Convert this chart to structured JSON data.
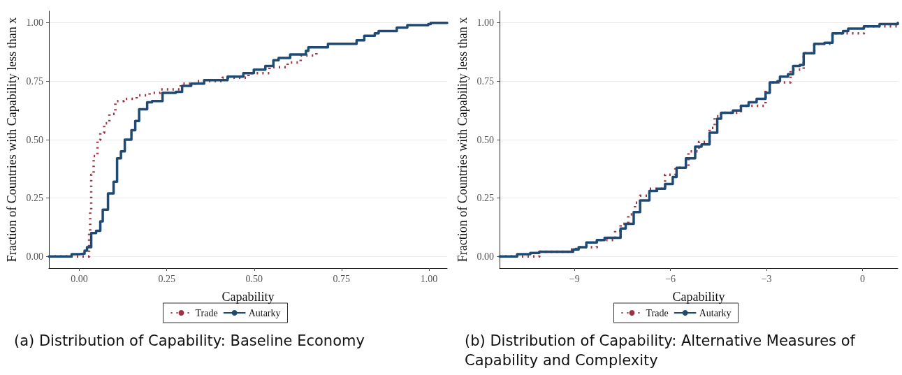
{
  "chart_data": [
    {
      "type": "step",
      "title": "(a) Distribution of Capability: Baseline Economy",
      "xlabel": "Capability",
      "ylabel": "Fraction of Countries with Capability less than x",
      "xlim": [
        -0.087,
        1.052
      ],
      "ylim": [
        -0.05,
        1.05
      ],
      "xticks": [
        {
          "value": 0,
          "label": "0.00"
        },
        {
          "value": 0.25,
          "label": "0.25"
        },
        {
          "value": 0.5,
          "label": "0.50"
        },
        {
          "value": 0.75,
          "label": "0.75"
        },
        {
          "value": 1,
          "label": "1.00"
        }
      ],
      "yticks": [
        {
          "value": 0,
          "label": "0.00"
        },
        {
          "value": 0.25,
          "label": "0.25"
        },
        {
          "value": 0.5,
          "label": "0.50"
        },
        {
          "value": 0.75,
          "label": "0.75"
        },
        {
          "value": 1,
          "label": "1.00"
        }
      ],
      "grid": "y",
      "legend": "bottom",
      "series": [
        {
          "name": "Trade",
          "color": "#9b3340",
          "line_style": "dotted",
          "x": [
            -0.087,
            0.026,
            0.028,
            0.031,
            0.034,
            0.041,
            0.052,
            0.06,
            0.071,
            0.086,
            0.103,
            0.127,
            0.164,
            0.201,
            0.231,
            0.29,
            0.335,
            0.41,
            0.484,
            0.544,
            0.596,
            0.633,
            0.678
          ],
          "values": [
            0,
            0,
            0.1,
            0.2,
            0.35,
            0.43,
            0.5,
            0.53,
            0.57,
            0.61,
            0.665,
            0.675,
            0.69,
            0.7,
            0.715,
            0.74,
            0.75,
            0.765,
            0.785,
            0.81,
            0.83,
            0.86,
            0.875
          ]
        },
        {
          "name": "Autarky",
          "color": "#1f4a73",
          "line_style": "solid",
          "x": [
            -0.087,
            -0.022,
            0.0,
            0.015,
            0.022,
            0.034,
            0.048,
            0.06,
            0.067,
            0.082,
            0.098,
            0.108,
            0.119,
            0.13,
            0.149,
            0.16,
            0.171,
            0.194,
            0.208,
            0.238,
            0.276,
            0.294,
            0.32,
            0.357,
            0.424,
            0.469,
            0.499,
            0.532,
            0.555,
            0.57,
            0.603,
            0.648,
            0.655,
            0.711,
            0.793,
            0.815,
            0.845,
            0.856,
            0.908,
            0.938,
            0.998,
            1.005,
            1.052
          ],
          "values": [
            0,
            0.01,
            0.012,
            0.025,
            0.04,
            0.1,
            0.11,
            0.15,
            0.2,
            0.27,
            0.32,
            0.42,
            0.45,
            0.5,
            0.54,
            0.58,
            0.63,
            0.66,
            0.665,
            0.7,
            0.705,
            0.73,
            0.74,
            0.755,
            0.77,
            0.785,
            0.8,
            0.815,
            0.84,
            0.85,
            0.865,
            0.88,
            0.895,
            0.91,
            0.925,
            0.945,
            0.955,
            0.965,
            0.98,
            0.99,
            0.995,
            1.0,
            1.0
          ]
        }
      ]
    },
    {
      "type": "step",
      "title": "(b) Distribution of Capability: Alternative Measures of Capability and Complexity",
      "xlabel": "Capability",
      "ylabel": "Fraction of Countries with Capability less than x",
      "xlim": [
        -11.34,
        1.1
      ],
      "ylim": [
        -0.05,
        1.05
      ],
      "xticks": [
        {
          "value": -9,
          "label": "−9"
        },
        {
          "value": -6,
          "label": "−6"
        },
        {
          "value": -3,
          "label": "−3"
        },
        0
      ],
      "yticks": [
        {
          "value": 0,
          "label": "0.00"
        },
        {
          "value": 0.25,
          "label": "0.25"
        },
        {
          "value": 0.5,
          "label": "0.50"
        },
        {
          "value": 0.75,
          "label": "0.75"
        },
        {
          "value": 1,
          "label": "1.00"
        }
      ],
      "grid": "y",
      "legend": "bottom",
      "series": [
        {
          "name": "Trade",
          "color": "#9b3340",
          "line_style": "dotted",
          "x": [
            -11.34,
            -10.1,
            -9.2,
            -8.95,
            -8.3,
            -7.73,
            -7.56,
            -7.32,
            -7.11,
            -6.95,
            -6.66,
            -6.17,
            -5.85,
            -5.44,
            -5.11,
            -4.78,
            -4.62,
            -4.42,
            -3.8,
            -3.03,
            -2.9,
            -2.25,
            -1.84,
            -1.51,
            -0.94,
            0.04,
            1.1
          ],
          "values": [
            0,
            0.02,
            0.03,
            0.04,
            0.07,
            0.11,
            0.14,
            0.18,
            0.23,
            0.26,
            0.29,
            0.35,
            0.38,
            0.45,
            0.49,
            0.55,
            0.6,
            0.615,
            0.645,
            0.71,
            0.745,
            0.8,
            0.87,
            0.91,
            0.955,
            0.985,
            1.0
          ]
        },
        {
          "name": "Autarky",
          "color": "#1f4a73",
          "line_style": "solid",
          "x": [
            -11.34,
            -10.79,
            -10.38,
            -10.1,
            -9.04,
            -8.87,
            -8.63,
            -8.3,
            -8.06,
            -7.56,
            -7.4,
            -7.15,
            -6.95,
            -6.66,
            -6.42,
            -6.17,
            -5.93,
            -5.81,
            -5.52,
            -5.23,
            -5.03,
            -4.78,
            -4.54,
            -4.42,
            -4.05,
            -3.8,
            -3.56,
            -3.31,
            -3.03,
            -2.9,
            -2.66,
            -2.58,
            -2.33,
            -2.17,
            -1.96,
            -1.84,
            -1.51,
            -1.19,
            -0.94,
            -0.61,
            -0.45,
            0.04,
            0.53,
            1.1
          ],
          "values": [
            0,
            0.01,
            0.015,
            0.02,
            0.03,
            0.04,
            0.06,
            0.07,
            0.08,
            0.12,
            0.14,
            0.19,
            0.24,
            0.28,
            0.29,
            0.31,
            0.34,
            0.38,
            0.42,
            0.47,
            0.48,
            0.53,
            0.59,
            0.615,
            0.625,
            0.645,
            0.66,
            0.675,
            0.7,
            0.745,
            0.75,
            0.77,
            0.78,
            0.815,
            0.82,
            0.87,
            0.91,
            0.915,
            0.955,
            0.965,
            0.975,
            0.985,
            0.995,
            1.0
          ]
        }
      ]
    }
  ]
}
